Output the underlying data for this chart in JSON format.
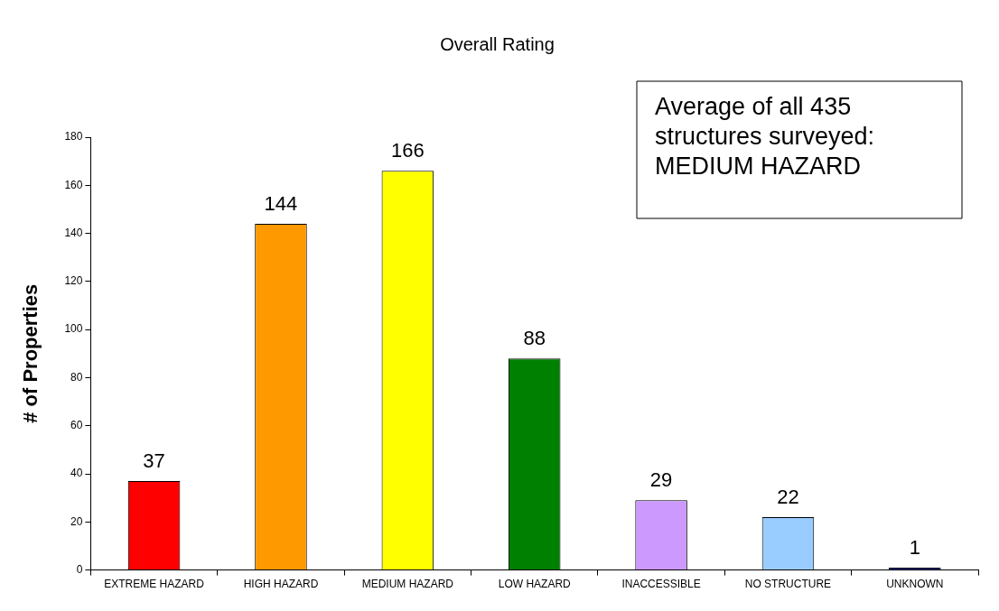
{
  "chart_data": {
    "type": "bar",
    "title": "Overall Rating",
    "ylabel": "# of Properties",
    "categories": [
      "EXTREME HAZARD",
      "HIGH HAZARD",
      "MEDIUM HAZARD",
      "LOW HAZARD",
      "INACCESSIBLE",
      "NO STRUCTURE",
      "UNKNOWN"
    ],
    "values": [
      37,
      144,
      166,
      88,
      29,
      22,
      1
    ],
    "colors": [
      "#ff0000",
      "#ff9900",
      "#ffff00",
      "#008000",
      "#cc99ff",
      "#99ccff",
      "#333399"
    ],
    "ylim": [
      0,
      180
    ],
    "yticks": [
      0,
      20,
      40,
      60,
      80,
      100,
      120,
      140,
      160,
      180
    ],
    "grid": false,
    "legend": false,
    "data_labels": true,
    "annotations": [
      "Average of all 435 structures surveyed: MEDIUM HAZARD"
    ]
  }
}
